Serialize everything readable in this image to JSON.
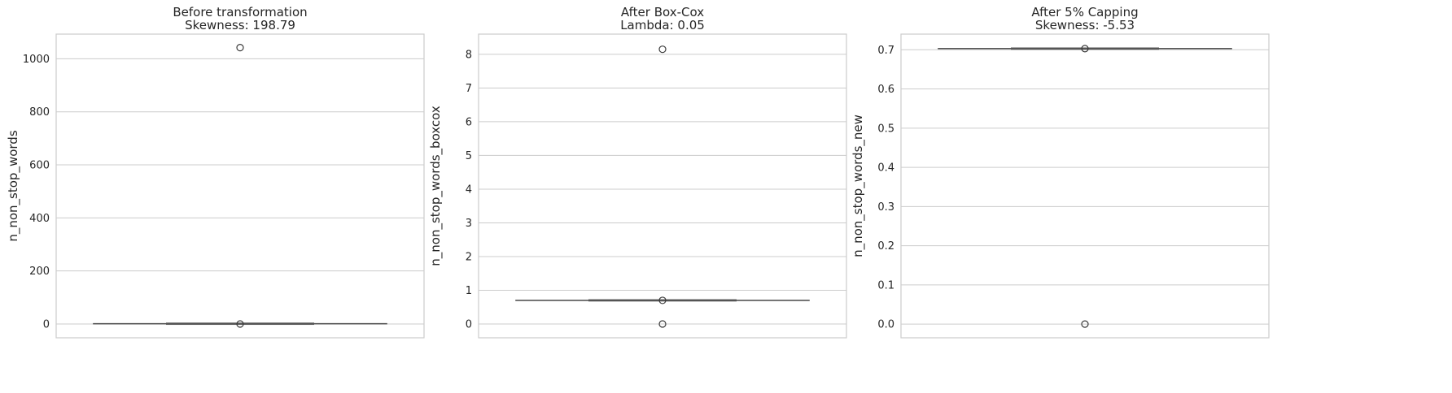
{
  "chart_data": [
    {
      "type": "box",
      "title": "Before transformation",
      "subtitle": "Skewness: 198.79",
      "ylabel": "n_non_stop_words",
      "ylim": [
        -52,
        1093
      ],
      "yticks": [
        0,
        200,
        400,
        600,
        800,
        1000
      ],
      "grid": true,
      "box": {
        "whisker_low": 0.0,
        "q1": 1.0,
        "median": 1.0,
        "q3": 1.0,
        "whisker_high": 1.0
      },
      "outliers": [
        1042,
        0
      ]
    },
    {
      "type": "box",
      "title": "After Box-Cox",
      "subtitle": "Lambda: 0.05",
      "ylabel": "n_non_stop_words_boxcox",
      "ylim": [
        -0.41,
        8.6
      ],
      "yticks": [
        0,
        1,
        2,
        3,
        4,
        5,
        6,
        7,
        8
      ],
      "grid": true,
      "box": {
        "whisker_low": 0.7,
        "q1": 0.7,
        "median": 0.7,
        "q3": 0.7,
        "whisker_high": 0.7
      },
      "outliers": [
        8.15,
        0.7,
        0.0
      ]
    },
    {
      "type": "box",
      "title": "After 5% Capping",
      "subtitle": "Skewness: -5.53",
      "ylabel": "n_non_stop_words_new",
      "ylim": [
        -0.035,
        0.74
      ],
      "yticks": [
        0.0,
        0.1,
        0.2,
        0.3,
        0.4,
        0.5,
        0.6,
        0.7
      ],
      "grid": true,
      "box": {
        "whisker_low": 0.703,
        "q1": 0.703,
        "median": 0.703,
        "q3": 0.703,
        "whisker_high": 0.703
      },
      "outliers": [
        0.703,
        0.0
      ]
    }
  ]
}
